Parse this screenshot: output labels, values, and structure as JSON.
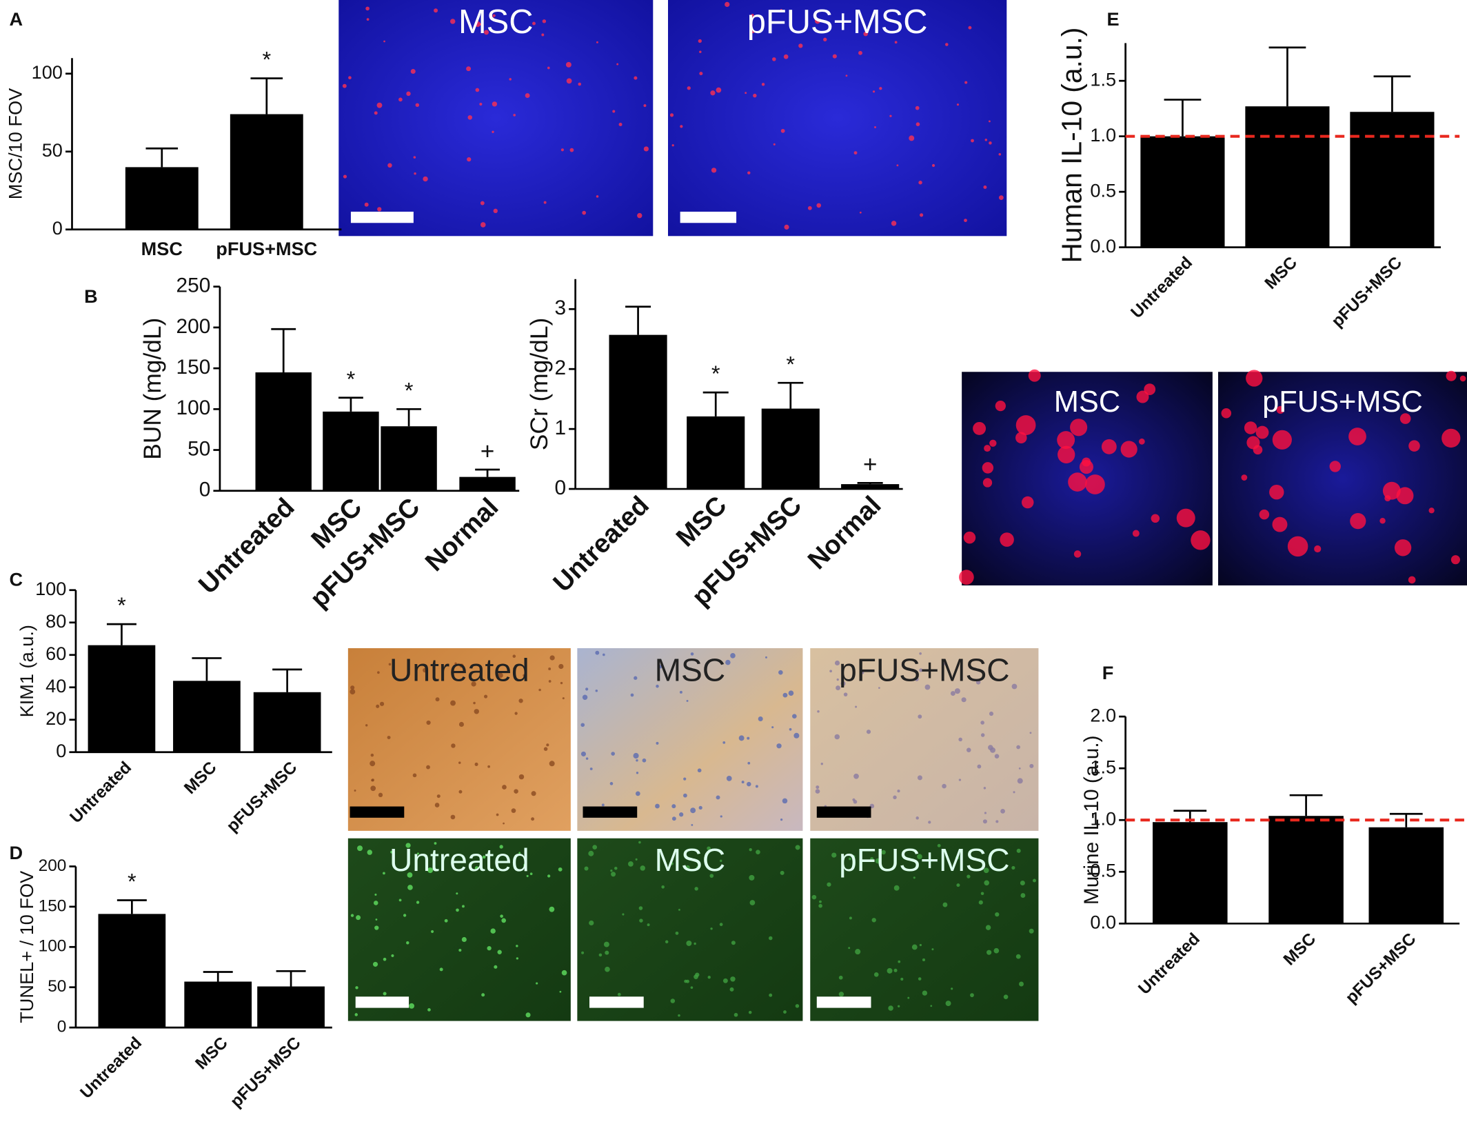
{
  "panel_labels": [
    "A",
    "B",
    "C",
    "D",
    "E",
    "F"
  ],
  "chart_data": [
    {
      "type": "bar",
      "ylabel": "MSC/10 FOV",
      "categories": [
        "MSC",
        "pFUS+MSC"
      ],
      "values": [
        40,
        74
      ],
      "errors": [
        12,
        23
      ],
      "annotations": [
        null,
        "*"
      ],
      "color": "#000000",
      "ylim": [
        0,
        110
      ],
      "yticks": [
        0,
        50,
        100
      ]
    },
    {
      "type": "bar",
      "ylabel": "BUN (mg/dL)",
      "categories": [
        "Untreated",
        "MSC",
        "pFUS+MSC",
        "Normal"
      ],
      "values": [
        145,
        97,
        79,
        17
      ],
      "errors": [
        53,
        17,
        21,
        9
      ],
      "annotations": [
        null,
        "*",
        "*",
        "+"
      ],
      "color": "#000000",
      "ylim": [
        0,
        250
      ],
      "yticks": [
        0,
        50,
        100,
        150,
        200,
        250
      ]
    },
    {
      "type": "bar",
      "ylabel": "SCr (mg/dL)",
      "categories": [
        "Untreated",
        "MSC",
        "pFUS+MSC",
        "Normal"
      ],
      "values": [
        2.57,
        1.21,
        1.34,
        0.08
      ],
      "errors": [
        0.47,
        0.4,
        0.43,
        0.02
      ],
      "annotations": [
        null,
        "*",
        "*",
        "+"
      ],
      "color": "#000000",
      "ylim": [
        0,
        3.5
      ],
      "yticks": [
        0,
        1,
        2,
        3
      ]
    },
    {
      "type": "bar",
      "ylabel": "KIM1 (a.u.)",
      "categories": [
        "Untreated",
        "MSC",
        "pFUS+MSC"
      ],
      "values": [
        66,
        44,
        37
      ],
      "errors": [
        13,
        14,
        14
      ],
      "annotations": [
        "*",
        null,
        null
      ],
      "color": "#000000",
      "ylim": [
        0,
        100
      ],
      "yticks": [
        0,
        20,
        40,
        60,
        80,
        100
      ]
    },
    {
      "type": "bar",
      "ylabel": "TUNEL+ / 10 FOV",
      "categories": [
        "Untreated",
        "MSC",
        "pFUS+MSC"
      ],
      "values": [
        141,
        57,
        51
      ],
      "errors": [
        17,
        12,
        19
      ],
      "annotations": [
        "*",
        null,
        null
      ],
      "color": "#000000",
      "ylim": [
        0,
        200
      ],
      "yticks": [
        0,
        50,
        100,
        150,
        200
      ]
    },
    {
      "type": "bar",
      "ylabel": "Human IL-10 (a.u.)",
      "categories": [
        "Untreated",
        "MSC",
        "pFUS+MSC"
      ],
      "values": [
        1.0,
        1.27,
        1.22
      ],
      "errors": [
        0.33,
        0.53,
        0.32
      ],
      "color": "#000000",
      "reference_line": {
        "value": 1,
        "color": "#e8281e"
      },
      "ylim": [
        0,
        1.84
      ],
      "yticks": [
        {
          "value": 0,
          "label": "0.0"
        },
        {
          "value": 0.5,
          "label": "0.5"
        },
        {
          "value": 1,
          "label": "1.0"
        },
        {
          "value": 1.5,
          "label": "1.5"
        }
      ]
    },
    {
      "type": "bar",
      "ylabel": "Murine IL-10 (a.u.)",
      "categories": [
        "Untreated",
        "MSC",
        "pFUS+MSC"
      ],
      "values": [
        0.98,
        1.04,
        0.93
      ],
      "errors": [
        0.11,
        0.2,
        0.13
      ],
      "color": "#000000",
      "reference_line": {
        "value": 1,
        "color": "#e8281e"
      },
      "ylim": [
        0,
        2
      ],
      "yticks": [
        {
          "value": 0,
          "label": "0.0"
        },
        {
          "value": 0.5,
          "label": "0.5"
        },
        {
          "value": 1,
          "label": "1.0"
        },
        {
          "value": 1.5,
          "label": "1.5"
        },
        {
          "value": 2,
          "label": "2.0"
        }
      ]
    }
  ],
  "micrographs": [
    {
      "label": "MSC"
    },
    {
      "label": "pFUS+MSC"
    },
    {
      "label": "MSC"
    },
    {
      "label": "pFUS+MSC"
    },
    {
      "label": "Untreated"
    },
    {
      "label": "MSC"
    },
    {
      "label": "pFUS+MSC"
    },
    {
      "label": "Untreated"
    },
    {
      "label": "MSC"
    },
    {
      "label": "pFUS+MSC"
    }
  ]
}
